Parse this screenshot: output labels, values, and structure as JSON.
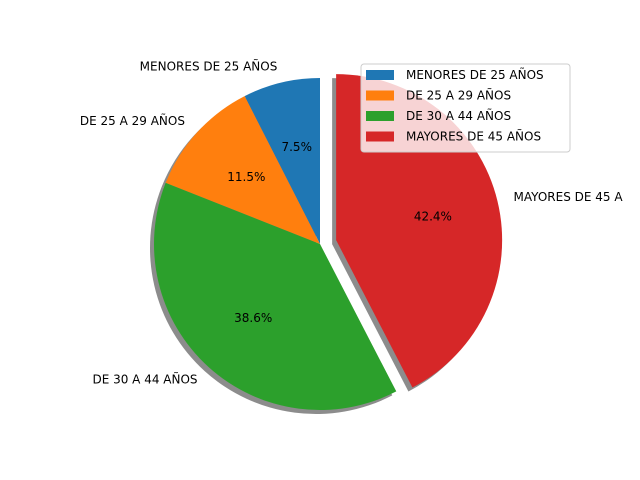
{
  "chart_data": {
    "type": "pie",
    "title": "",
    "categories": [
      "MENORES DE 25 AÑOS",
      "DE 25 A 29 AÑOS",
      "DE 30 A 44 AÑOS",
      "MAYORES DE 45 AÑOS"
    ],
    "values": [
      7.5,
      11.5,
      38.6,
      42.4
    ],
    "percent_labels": [
      "7.5%",
      "11.5%",
      "38.6%",
      "42.4%"
    ],
    "exploded": [
      false,
      false,
      false,
      true
    ],
    "shadow": true,
    "start_angle_deg": 90,
    "direction": "counterclockwise",
    "colors": [
      "#1f77b4",
      "#ff7f0e",
      "#2ca02c",
      "#d62728"
    ],
    "legend": {
      "placement": "top-right",
      "entries": [
        "MENORES DE 25 AÑOS",
        "DE 25 A 29 AÑOS",
        "DE 30 A 44 AÑOS",
        "MAYORES DE 45 AÑOS"
      ]
    },
    "outer_labels_visible": [
      "MENORES DE 25 AÑOS",
      "DE 25 A 29 AÑOS",
      "DE 30 A 44 AÑOS",
      "MAYORES DE 45 A"
    ]
  }
}
